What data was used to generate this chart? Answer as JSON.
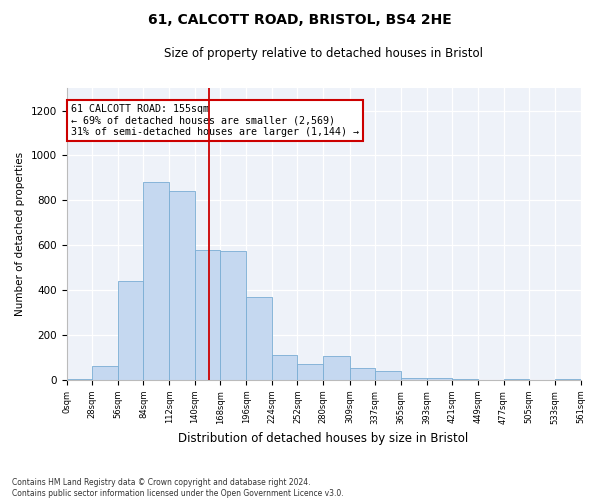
{
  "title": "61, CALCOTT ROAD, BRISTOL, BS4 2HE",
  "subtitle": "Size of property relative to detached houses in Bristol",
  "xlabel": "Distribution of detached houses by size in Bristol",
  "ylabel": "Number of detached properties",
  "bar_values": [
    5,
    60,
    440,
    880,
    840,
    580,
    575,
    370,
    110,
    70,
    105,
    55,
    40,
    10,
    10,
    5,
    0,
    5,
    0,
    3
  ],
  "bin_edges": [
    0,
    28,
    56,
    84,
    112,
    140,
    168,
    196,
    224,
    252,
    280,
    309,
    337,
    365,
    393,
    421,
    449,
    477,
    505,
    533,
    561
  ],
  "bin_labels": [
    "0sqm",
    "28sqm",
    "56sqm",
    "84sqm",
    "112sqm",
    "140sqm",
    "168sqm",
    "196sqm",
    "224sqm",
    "252sqm",
    "280sqm",
    "309sqm",
    "337sqm",
    "365sqm",
    "393sqm",
    "421sqm",
    "449sqm",
    "477sqm",
    "505sqm",
    "533sqm",
    "561sqm"
  ],
  "property_size": 155,
  "bar_color": "#c5d8f0",
  "bar_edge_color": "#7aadd4",
  "vline_color": "#cc0000",
  "annotation_text": "61 CALCOTT ROAD: 155sqm\n← 69% of detached houses are smaller (2,569)\n31% of semi-detached houses are larger (1,144) →",
  "annotation_box_color": "#ffffff",
  "annotation_box_edge": "#cc0000",
  "footnote": "Contains HM Land Registry data © Crown copyright and database right 2024.\nContains public sector information licensed under the Open Government Licence v3.0.",
  "ylim": [
    0,
    1300
  ],
  "background_color": "#eef2f9"
}
